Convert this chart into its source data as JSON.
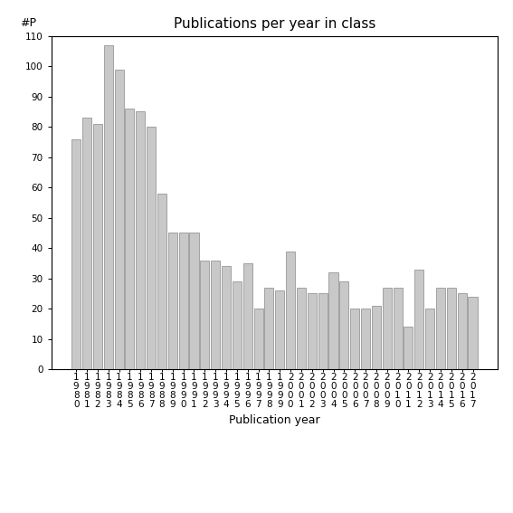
{
  "title": "Publications per year in class",
  "xlabel": "Publication year",
  "ylabel": "#P",
  "bar_color": "#c8c8c8",
  "bar_edgecolor": "#888888",
  "ylim": [
    0,
    110
  ],
  "yticks": [
    0,
    10,
    20,
    30,
    40,
    50,
    60,
    70,
    80,
    90,
    100,
    110
  ],
  "categories": [
    "1980",
    "1981",
    "1982",
    "1983",
    "1984",
    "1985",
    "1986",
    "1987",
    "1988",
    "1989",
    "1990",
    "1991",
    "1992",
    "1993",
    "1994",
    "1995",
    "1996",
    "1997",
    "1998",
    "1999",
    "2000",
    "2001",
    "2002",
    "2003",
    "2004",
    "2005",
    "2006",
    "2007",
    "2008",
    "2009",
    "2010",
    "2011",
    "2012",
    "2013",
    "2014",
    "2015",
    "2016",
    "2017"
  ],
  "values": [
    76,
    83,
    81,
    107,
    99,
    86,
    85,
    80,
    58,
    45,
    45,
    45,
    36,
    36,
    34,
    29,
    35,
    20,
    27,
    26,
    39,
    27,
    25,
    25,
    32,
    29,
    20,
    20,
    21,
    27,
    27,
    14,
    33,
    20,
    27,
    27,
    25,
    24
  ],
  "background_color": "#ffffff",
  "title_fontsize": 11,
  "label_fontsize": 9,
  "tick_fontsize": 7.5
}
